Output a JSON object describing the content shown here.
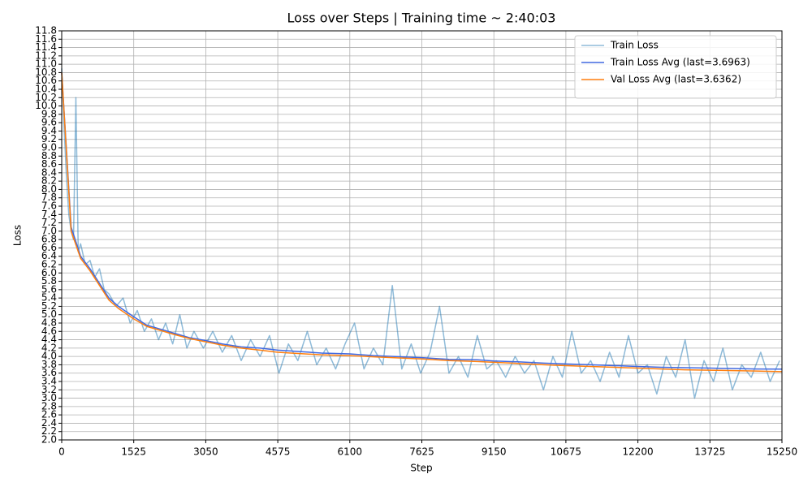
{
  "chart_data": {
    "type": "line",
    "title": "Loss over Steps | Training time ~ 2:40:03",
    "x_label": "Step",
    "y_label": "Loss",
    "xlim": [
      0,
      15250
    ],
    "xticks": [
      0,
      1525,
      3050,
      4575,
      6100,
      7625,
      9150,
      10675,
      12200,
      13725,
      15250
    ],
    "ylim": [
      2.0,
      11.8
    ],
    "yticks": [
      {
        "value": 2,
        "label": "2.0"
      },
      2.2,
      2.4,
      2.6,
      2.8,
      {
        "value": 3,
        "label": "3.0"
      },
      3.2,
      3.4,
      3.6,
      3.8,
      {
        "value": 4,
        "label": "4.0"
      },
      4.2,
      4.4,
      4.6,
      4.8,
      {
        "value": 5,
        "label": "5.0"
      },
      5.2,
      5.4,
      5.6,
      5.8,
      {
        "value": 6,
        "label": "6.0"
      },
      6.2,
      6.4,
      6.6,
      6.8,
      {
        "value": 7,
        "label": "7.0"
      },
      7.2,
      7.4,
      7.6,
      7.8,
      {
        "value": 8,
        "label": "8.0"
      },
      8.2,
      8.4,
      8.6,
      8.8,
      {
        "value": 9,
        "label": "9.0"
      },
      9.2,
      9.4,
      9.6,
      9.8,
      {
        "value": 10,
        "label": "10.0"
      },
      10.2,
      10.4,
      10.6,
      10.8,
      {
        "value": 11,
        "label": "11.0"
      },
      11.2,
      11.4,
      11.6,
      11.8
    ],
    "grid": true,
    "legend": "upper-right",
    "series": [
      {
        "name": "Train Loss",
        "color": "#1f77b4",
        "opacity": 0.5,
        "x": [
          0,
          50,
          100,
          150,
          200,
          250,
          300,
          350,
          400,
          500,
          600,
          700,
          800,
          900,
          1000,
          1150,
          1300,
          1450,
          1600,
          1750,
          1900,
          2050,
          2200,
          2350,
          2500,
          2650,
          2800,
          3000,
          3200,
          3400,
          3600,
          3800,
          4000,
          4200,
          4400,
          4600,
          4800,
          5000,
          5200,
          5400,
          5600,
          5800,
          6000,
          6200,
          6400,
          6600,
          6800,
          7000,
          7200,
          7400,
          7600,
          7800,
          8000,
          8200,
          8400,
          8600,
          8800,
          9000,
          9200,
          9400,
          9600,
          9800,
          10000,
          10200,
          10400,
          10600,
          10800,
          11000,
          11200,
          11400,
          11600,
          11800,
          12000,
          12200,
          12400,
          12600,
          12800,
          13000,
          13200,
          13400,
          13600,
          13800,
          14000,
          14200,
          14400,
          14600,
          14800,
          15000,
          15200
        ],
        "values": [
          10.9,
          9.5,
          8.3,
          7.4,
          7.0,
          6.8,
          10.2,
          6.5,
          6.7,
          6.2,
          6.3,
          5.9,
          6.1,
          5.6,
          5.5,
          5.2,
          5.4,
          4.8,
          5.1,
          4.6,
          4.9,
          4.4,
          4.8,
          4.3,
          5.0,
          4.2,
          4.6,
          4.2,
          4.6,
          4.1,
          4.5,
          3.9,
          4.4,
          4.0,
          4.5,
          3.6,
          4.3,
          3.9,
          4.6,
          3.8,
          4.2,
          3.7,
          4.3,
          4.8,
          3.7,
          4.2,
          3.8,
          5.7,
          3.7,
          4.3,
          3.6,
          4.1,
          5.2,
          3.6,
          4.0,
          3.5,
          4.5,
          3.7,
          3.9,
          3.5,
          4.0,
          3.6,
          3.9,
          3.2,
          4.0,
          3.5,
          4.6,
          3.6,
          3.9,
          3.4,
          4.1,
          3.5,
          4.5,
          3.6,
          3.8,
          3.1,
          4.0,
          3.5,
          4.4,
          3.0,
          3.9,
          3.4,
          4.2,
          3.2,
          3.8,
          3.5,
          4.1,
          3.4,
          3.9
        ]
      },
      {
        "name": "Train Loss Avg (last=3.6963)",
        "color": "#4169e1",
        "opacity": 1,
        "x": [
          0,
          200,
          400,
          600,
          800,
          1000,
          1200,
          1525,
          1800,
          2100,
          2400,
          2700,
          3050,
          3400,
          3800,
          4200,
          4575,
          5000,
          5500,
          6100,
          6600,
          7000,
          7625,
          8200,
          8800,
          9150,
          9700,
          10200,
          10675,
          11200,
          11700,
          12200,
          12700,
          13200,
          13725,
          14200,
          14700,
          15250
        ],
        "values": [
          10.8,
          7.1,
          6.4,
          6.1,
          5.75,
          5.4,
          5.2,
          4.95,
          4.75,
          4.65,
          4.55,
          4.45,
          4.38,
          4.3,
          4.23,
          4.2,
          4.15,
          4.12,
          4.08,
          4.06,
          4.02,
          4.0,
          3.97,
          3.93,
          3.92,
          3.89,
          3.87,
          3.84,
          3.82,
          3.8,
          3.78,
          3.76,
          3.74,
          3.73,
          3.72,
          3.71,
          3.7,
          3.6963
        ]
      },
      {
        "name": "Val Loss Avg (last=3.6362)",
        "color": "#ff7f0e",
        "opacity": 1,
        "x": [
          0,
          200,
          400,
          600,
          800,
          1000,
          1200,
          1525,
          1800,
          2100,
          2400,
          2700,
          3050,
          3400,
          3800,
          4200,
          4575,
          5000,
          5500,
          6100,
          6600,
          7000,
          7625,
          8200,
          8800,
          9150,
          9700,
          10200,
          10675,
          11200,
          11700,
          12200,
          12700,
          13200,
          13725,
          14200,
          14700,
          15250
        ],
        "values": [
          10.8,
          7.0,
          6.35,
          6.05,
          5.7,
          5.35,
          5.15,
          4.9,
          4.72,
          4.62,
          4.52,
          4.43,
          4.35,
          4.27,
          4.2,
          4.15,
          4.1,
          4.07,
          4.04,
          4.02,
          3.99,
          3.97,
          3.94,
          3.9,
          3.88,
          3.86,
          3.83,
          3.8,
          3.78,
          3.76,
          3.74,
          3.72,
          3.7,
          3.68,
          3.67,
          3.66,
          3.65,
          3.6362
        ]
      }
    ]
  }
}
